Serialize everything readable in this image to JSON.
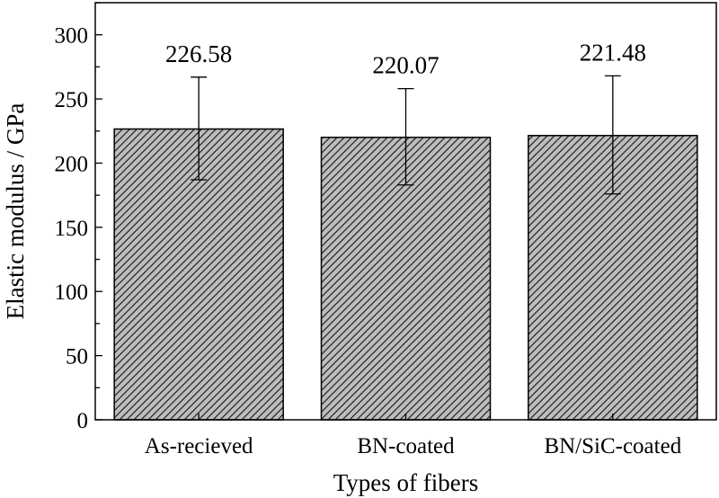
{
  "chart_data": {
    "type": "bar",
    "xlabel": "Types of fibers",
    "ylabel": "Elastic modulus / GPa",
    "categories": [
      "As-recieved",
      "BN-coated",
      "BN/SiC-coated"
    ],
    "values": [
      226.58,
      220.07,
      221.48
    ],
    "data_labels": [
      "226.58",
      "220.07",
      "221.48"
    ],
    "error_bars": {
      "upper": [
        267,
        258,
        268
      ],
      "lower": [
        187,
        183,
        176
      ]
    },
    "ylim": [
      0,
      325
    ],
    "y_ticks": [
      0,
      50,
      100,
      150,
      200,
      250,
      300
    ],
    "y_minor_step": 25,
    "grid": false,
    "legend": "none",
    "bar_fill": "#bdbdbd",
    "bar_pattern": "diagonal-hatch",
    "hatch_color": "#222222"
  }
}
